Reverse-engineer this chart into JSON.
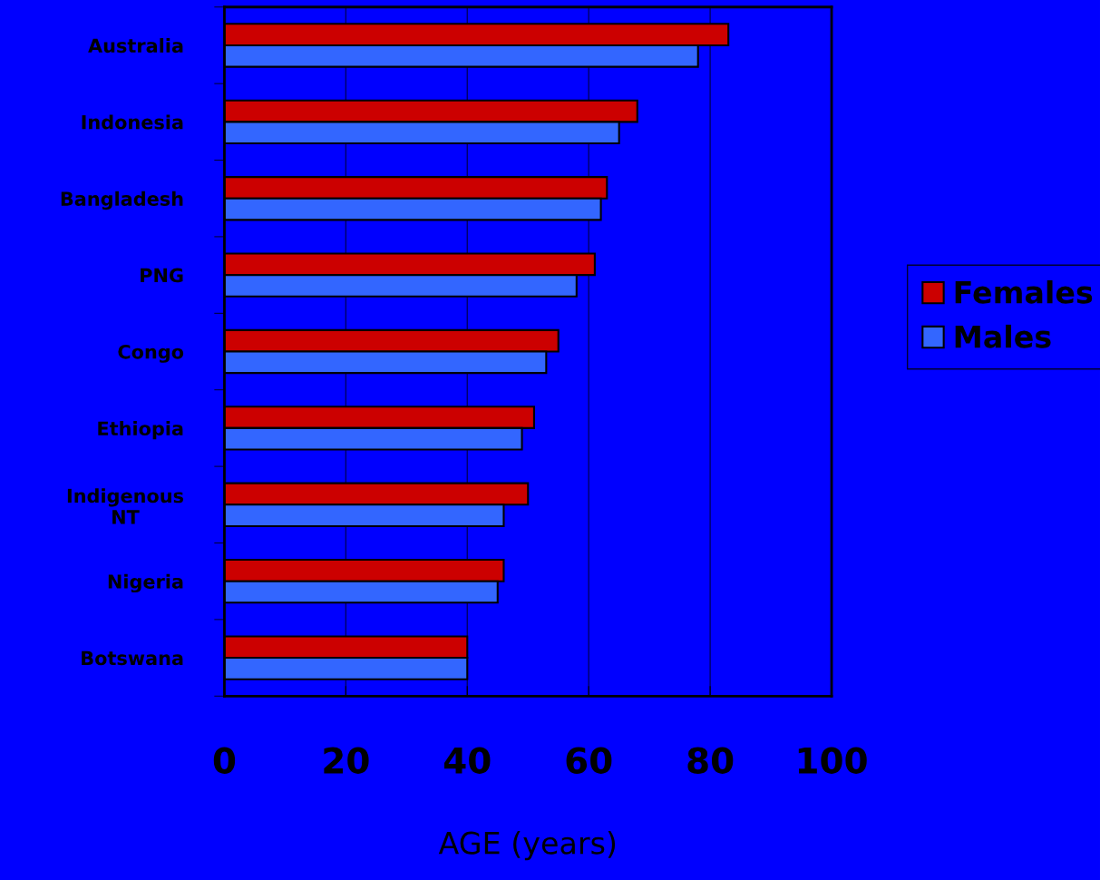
{
  "chart_data": {
    "type": "bar",
    "orientation": "horizontal",
    "xlabel": "AGE (years)",
    "categories": [
      "Australia",
      "Indonesia",
      "Bangladesh",
      "PNG",
      "Congo",
      "Ethiopia",
      "Indigenous\nNT",
      "Nigeria",
      "Botswana"
    ],
    "series": [
      {
        "name": "Females",
        "color": "#cc0000",
        "values": [
          83,
          68,
          63,
          61,
          55,
          51,
          50,
          46,
          40
        ]
      },
      {
        "name": "Males",
        "color": "#3366ff",
        "values": [
          78,
          65,
          62,
          58,
          53,
          49,
          46,
          45,
          40
        ]
      }
    ],
    "xlim": [
      0,
      100
    ],
    "xticks": [
      0,
      20,
      40,
      60,
      80,
      100
    ],
    "grid": "x",
    "legend": "right"
  }
}
